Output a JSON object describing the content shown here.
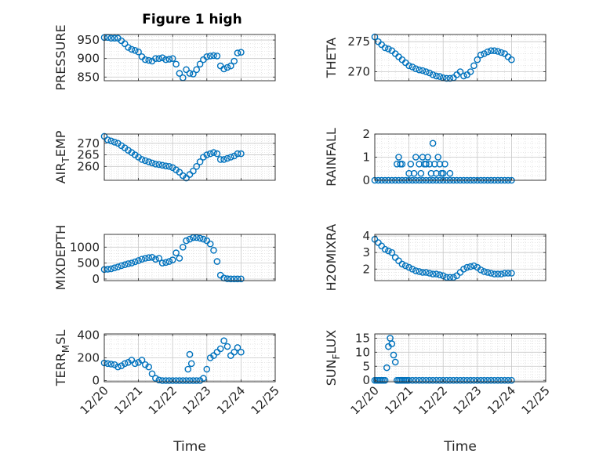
{
  "figure": {
    "title": "Figure 1 high",
    "marker_color": "#0072BD"
  },
  "chart_data": [
    {
      "type": "scatter",
      "id": "pressure",
      "ylabel": {
        "main": "PRESSURE"
      },
      "xlim": [
        0,
        5
      ],
      "ylim": [
        840,
        965
      ],
      "xticks": [
        0,
        1,
        2,
        3,
        4,
        5
      ],
      "xticklabels": [],
      "yticks": [
        850,
        900,
        950
      ],
      "yticklabels": [
        "850",
        "900",
        "950"
      ],
      "grid": true,
      "x": [
        0.0,
        0.1,
        0.2,
        0.3,
        0.4,
        0.5,
        0.6,
        0.7,
        0.8,
        0.9,
        1.0,
        1.1,
        1.2,
        1.3,
        1.4,
        1.5,
        1.6,
        1.7,
        1.8,
        1.9,
        2.0,
        2.1,
        2.2,
        2.3,
        2.4,
        2.5,
        2.6,
        2.7,
        2.8,
        2.9,
        3.0,
        3.1,
        3.2,
        3.3,
        3.4,
        3.5,
        3.6,
        3.7,
        3.8,
        3.9,
        4.0
      ],
      "y": [
        957,
        957,
        955,
        955,
        955,
        948,
        940,
        930,
        925,
        922,
        918,
        905,
        897,
        895,
        893,
        900,
        900,
        902,
        897,
        898,
        900,
        885,
        860,
        848,
        870,
        860,
        858,
        870,
        885,
        897,
        905,
        907,
        908,
        907,
        880,
        872,
        876,
        880,
        893,
        915,
        917
      ]
    },
    {
      "type": "scatter",
      "id": "theta",
      "ylabel": {
        "main": "THETA"
      },
      "xlim": [
        0,
        5
      ],
      "ylim": [
        268.5,
        276.2
      ],
      "xticks": [
        0,
        1,
        2,
        3,
        4,
        5
      ],
      "xticklabels": [],
      "yticks": [
        270,
        275
      ],
      "yticklabels": [
        "270",
        "275"
      ],
      "grid": true,
      "x": [
        0.0,
        0.1,
        0.2,
        0.3,
        0.4,
        0.5,
        0.6,
        0.7,
        0.8,
        0.9,
        1.0,
        1.1,
        1.2,
        1.3,
        1.4,
        1.5,
        1.6,
        1.7,
        1.8,
        1.9,
        2.0,
        2.1,
        2.2,
        2.3,
        2.4,
        2.5,
        2.6,
        2.7,
        2.8,
        2.9,
        3.0,
        3.1,
        3.2,
        3.3,
        3.4,
        3.5,
        3.6,
        3.7,
        3.8,
        3.9,
        4.0
      ],
      "y": [
        275.8,
        275.0,
        274.5,
        274.0,
        273.8,
        273.5,
        273.0,
        272.5,
        272.0,
        271.5,
        271.0,
        270.8,
        270.5,
        270.3,
        270.2,
        270.0,
        269.8,
        269.5,
        269.3,
        269.2,
        269.0,
        268.9,
        268.9,
        269.0,
        269.5,
        270.0,
        269.3,
        269.5,
        270.0,
        271.0,
        272.0,
        272.8,
        273.0,
        273.3,
        273.5,
        273.5,
        273.4,
        273.2,
        273.0,
        272.5,
        272.0
      ]
    },
    {
      "type": "scatter",
      "id": "air_temp",
      "ylabel": {
        "main": "AIR",
        "sub": "T",
        "tail": "EMP"
      },
      "xlim": [
        0,
        5
      ],
      "ylim": [
        254,
        274
      ],
      "xticks": [
        0,
        1,
        2,
        3,
        4,
        5
      ],
      "xticklabels": [],
      "yticks": [
        260,
        265,
        270
      ],
      "yticklabels": [
        "260",
        "265",
        "270"
      ],
      "grid": true,
      "x": [
        0.0,
        0.1,
        0.2,
        0.3,
        0.4,
        0.5,
        0.6,
        0.7,
        0.8,
        0.9,
        1.0,
        1.1,
        1.2,
        1.3,
        1.4,
        1.5,
        1.6,
        1.7,
        1.8,
        1.9,
        2.0,
        2.1,
        2.2,
        2.3,
        2.4,
        2.5,
        2.6,
        2.7,
        2.8,
        2.9,
        3.0,
        3.1,
        3.2,
        3.3,
        3.4,
        3.5,
        3.6,
        3.7,
        3.8,
        3.9,
        4.0
      ],
      "y": [
        273.0,
        271.5,
        271.0,
        270.5,
        270.0,
        269.0,
        268.0,
        267.0,
        266.0,
        265.0,
        264.0,
        263.0,
        262.5,
        262.0,
        261.5,
        261.0,
        260.8,
        260.5,
        260.2,
        260.0,
        259.5,
        258.5,
        257.5,
        256.0,
        255.0,
        256.5,
        258.0,
        260.0,
        262.0,
        264.0,
        265.0,
        265.5,
        266.0,
        265.5,
        263.0,
        263.0,
        263.5,
        264.0,
        264.5,
        265.5,
        265.5
      ]
    },
    {
      "type": "scatter",
      "id": "rainfall",
      "ylabel": {
        "main": "RAINFALL"
      },
      "xlim": [
        0,
        5
      ],
      "ylim": [
        0,
        2
      ],
      "xticks": [
        0,
        1,
        2,
        3,
        4,
        5
      ],
      "xticklabels": [],
      "yticks": [
        0,
        1,
        2
      ],
      "yticklabels": [
        "0",
        "1",
        "2"
      ],
      "grid": true,
      "x": [
        0.0,
        0.1,
        0.2,
        0.3,
        0.4,
        0.5,
        0.6,
        0.7,
        0.8,
        0.9,
        1.0,
        1.1,
        1.2,
        1.3,
        1.4,
        1.5,
        1.6,
        1.7,
        1.8,
        1.9,
        2.0,
        2.1,
        2.2,
        2.3,
        2.4,
        2.5,
        2.6,
        2.7,
        2.8,
        2.9,
        3.0,
        3.1,
        3.2,
        3.3,
        3.4,
        3.5,
        3.6,
        3.7,
        3.8,
        3.9,
        4.0,
        0.65,
        0.7,
        0.75,
        0.8,
        1.0,
        1.05,
        1.15,
        1.2,
        1.3,
        1.35,
        1.4,
        1.45,
        1.5,
        1.55,
        1.6,
        1.65,
        1.7,
        1.75,
        1.8,
        1.85,
        1.9,
        1.95,
        2.0,
        2.05,
        2.2
      ],
      "y": [
        0,
        0,
        0,
        0,
        0,
        0,
        0,
        0,
        0,
        0,
        0,
        0,
        0,
        0,
        0,
        0,
        0,
        0,
        0,
        0,
        0,
        0,
        0,
        0,
        0,
        0,
        0,
        0,
        0,
        0,
        0,
        0,
        0,
        0,
        0,
        0,
        0,
        0,
        0,
        0,
        0,
        0.7,
        1.0,
        0.7,
        0.7,
        0.3,
        0.7,
        0.3,
        1.0,
        0.7,
        0.3,
        1.0,
        0.7,
        0.7,
        1.0,
        0.7,
        0.3,
        1.6,
        0.7,
        0.3,
        1.0,
        0.7,
        0.3,
        0.3,
        0.7,
        0.3
      ]
    },
    {
      "type": "scatter",
      "id": "mixdepth",
      "ylabel": {
        "main": "MIXDEPTH"
      },
      "xlim": [
        0,
        5
      ],
      "ylim": [
        -50,
        1400
      ],
      "xticks": [
        0,
        1,
        2,
        3,
        4,
        5
      ],
      "xticklabels": [],
      "yticks": [
        0,
        500,
        1000
      ],
      "yticklabels": [
        "0",
        "500",
        "1000"
      ],
      "grid": true,
      "x": [
        0.0,
        0.1,
        0.2,
        0.3,
        0.4,
        0.5,
        0.6,
        0.7,
        0.8,
        0.9,
        1.0,
        1.1,
        1.2,
        1.3,
        1.4,
        1.5,
        1.6,
        1.7,
        1.8,
        1.9,
        2.0,
        2.1,
        2.2,
        2.3,
        2.4,
        2.5,
        2.6,
        2.7,
        2.8,
        2.9,
        3.0,
        3.1,
        3.2,
        3.3,
        3.4,
        3.5,
        3.6,
        3.7,
        3.8,
        3.9,
        4.0
      ],
      "y": [
        300,
        310,
        320,
        350,
        380,
        420,
        450,
        480,
        500,
        540,
        580,
        620,
        650,
        670,
        680,
        620,
        650,
        500,
        520,
        550,
        600,
        820,
        650,
        1000,
        1200,
        1250,
        1300,
        1300,
        1280,
        1250,
        1200,
        1100,
        900,
        550,
        120,
        30,
        10,
        5,
        5,
        5,
        5
      ]
    },
    {
      "type": "scatter",
      "id": "h2omixra",
      "ylabel": {
        "main": "H2OMIXRA"
      },
      "xlim": [
        0,
        5
      ],
      "ylim": [
        1.3,
        4.1
      ],
      "xticks": [
        0,
        1,
        2,
        3,
        4,
        5
      ],
      "xticklabels": [],
      "yticks": [
        2,
        3,
        4
      ],
      "yticklabels": [
        "2",
        "3",
        "4"
      ],
      "grid": true,
      "x": [
        0.0,
        0.1,
        0.2,
        0.3,
        0.4,
        0.5,
        0.6,
        0.7,
        0.8,
        0.9,
        1.0,
        1.1,
        1.2,
        1.3,
        1.4,
        1.5,
        1.6,
        1.7,
        1.8,
        1.9,
        2.0,
        2.1,
        2.2,
        2.3,
        2.4,
        2.5,
        2.6,
        2.7,
        2.8,
        2.9,
        3.0,
        3.1,
        3.2,
        3.3,
        3.4,
        3.5,
        3.6,
        3.7,
        3.8,
        3.9,
        4.0
      ],
      "y": [
        3.8,
        3.6,
        3.4,
        3.2,
        3.1,
        3.0,
        2.7,
        2.5,
        2.3,
        2.2,
        2.1,
        2.0,
        1.9,
        1.85,
        1.8,
        1.8,
        1.75,
        1.7,
        1.7,
        1.65,
        1.6,
        1.5,
        1.5,
        1.5,
        1.6,
        1.8,
        2.0,
        2.1,
        2.15,
        2.2,
        2.1,
        1.95,
        1.85,
        1.8,
        1.75,
        1.7,
        1.7,
        1.7,
        1.75,
        1.75,
        1.75
      ]
    },
    {
      "type": "scatter",
      "id": "terr_msl",
      "ylabel": {
        "main": "TERR",
        "sub": "M",
        "tail": "SL"
      },
      "xlim": [
        0,
        5
      ],
      "ylim": [
        -10,
        410
      ],
      "xticks": [
        0,
        1,
        2,
        3,
        4,
        5
      ],
      "xticklabels": [
        "12/20",
        "12/21",
        "12/22",
        "12/23",
        "12/24",
        "12/25"
      ],
      "yticks": [
        0,
        200,
        400
      ],
      "yticklabels": [
        "0",
        "200",
        "400"
      ],
      "xlabel": "Time",
      "grid": true,
      "x": [
        0.0,
        0.1,
        0.2,
        0.3,
        0.4,
        0.5,
        0.6,
        0.7,
        0.8,
        0.9,
        1.0,
        1.1,
        1.2,
        1.3,
        1.4,
        1.5,
        1.6,
        1.7,
        1.8,
        1.9,
        2.0,
        2.1,
        2.2,
        2.3,
        2.4,
        2.5,
        2.6,
        2.7,
        2.8,
        2.9,
        3.0,
        3.1,
        3.2,
        3.3,
        3.4,
        3.5,
        3.6,
        3.7,
        3.8,
        3.9,
        4.0,
        2.45,
        2.5,
        2.55
      ],
      "y": [
        155,
        150,
        145,
        140,
        120,
        130,
        150,
        160,
        180,
        150,
        160,
        180,
        140,
        120,
        60,
        20,
        5,
        0,
        0,
        0,
        0,
        0,
        0,
        0,
        0,
        0,
        0,
        0,
        0,
        20,
        100,
        200,
        220,
        250,
        280,
        350,
        300,
        220,
        250,
        290,
        250,
        100,
        230,
        150
      ]
    },
    {
      "type": "scatter",
      "id": "sun_flux",
      "ylabel": {
        "main": "SUN",
        "sub": "F",
        "tail": "LUX"
      },
      "xlim": [
        0,
        5
      ],
      "ylim": [
        -0.5,
        16.5
      ],
      "xticks": [
        0,
        1,
        2,
        3,
        4,
        5
      ],
      "xticklabels": [
        "12/20",
        "12/21",
        "12/22",
        "12/23",
        "12/24",
        "12/25"
      ],
      "yticks": [
        0,
        5,
        10,
        15
      ],
      "yticklabels": [
        "0",
        "5",
        "10",
        "15"
      ],
      "xlabel": "Time",
      "grid": true,
      "x": [
        0.0,
        0.05,
        0.1,
        0.15,
        0.2,
        0.25,
        0.3,
        0.35,
        0.4,
        0.45,
        0.5,
        0.55,
        0.6,
        0.65,
        0.7,
        0.75,
        0.8,
        0.85,
        0.9,
        0.95,
        1.0,
        1.1,
        1.2,
        1.3,
        1.4,
        1.5,
        1.6,
        1.7,
        1.8,
        1.9,
        2.0,
        2.1,
        2.2,
        2.3,
        2.4,
        2.5,
        2.6,
        2.7,
        2.8,
        2.9,
        3.0,
        3.1,
        3.2,
        3.3,
        3.4,
        3.5,
        3.6,
        3.7,
        3.8,
        3.9,
        4.0
      ],
      "y": [
        0,
        0,
        0,
        0,
        0,
        0,
        0,
        4.5,
        12,
        15,
        13,
        9,
        6.5,
        0,
        0,
        0,
        0,
        0,
        0,
        0,
        0,
        0,
        0,
        0,
        0,
        0,
        0,
        0,
        0,
        0,
        0,
        0,
        0,
        0,
        0,
        0,
        0,
        0,
        0,
        0,
        0,
        0,
        0,
        0,
        0,
        0,
        0,
        0,
        0,
        0,
        0
      ]
    }
  ]
}
